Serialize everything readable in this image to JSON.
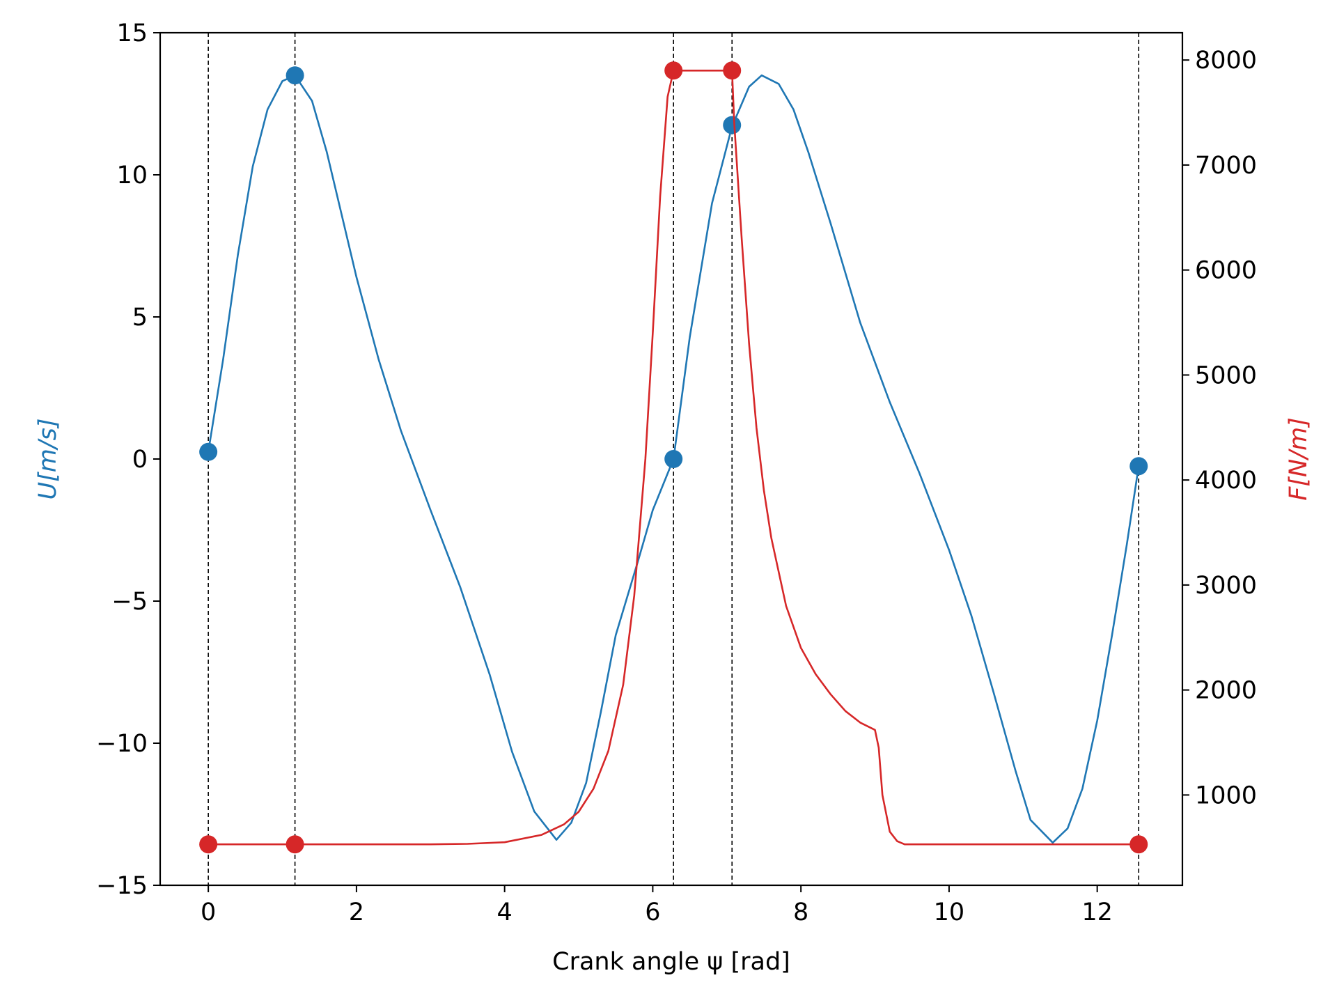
{
  "chart_data": {
    "type": "line",
    "xlabel": "Crank angle ψ [rad]",
    "ylabel_left": "U[m/s]",
    "ylabel_right": "F[N/m]",
    "xlim": [
      -0.65,
      13.15
    ],
    "ylim_left": [
      -15,
      15
    ],
    "ylim_right": [
      140,
      8260
    ],
    "x_ticks": [
      0,
      2,
      4,
      6,
      8,
      10,
      12
    ],
    "x_tick_labels": [
      "0",
      "2",
      "4",
      "6",
      "8",
      "10",
      "12"
    ],
    "y_left_ticks": [
      -15,
      -10,
      -5,
      0,
      5,
      10,
      15
    ],
    "y_left_tick_labels": [
      "−15",
      "−10",
      "−5",
      "0",
      "5",
      "10",
      "15"
    ],
    "y_right_ticks": [
      1000,
      2000,
      3000,
      4000,
      5000,
      6000,
      7000,
      8000
    ],
    "y_right_tick_labels": [
      "1000",
      "2000",
      "3000",
      "4000",
      "5000",
      "6000",
      "7000",
      "8000"
    ],
    "grid": false,
    "vertical_lines": [
      0.0,
      1.17,
      6.28,
      7.07,
      12.56
    ],
    "series": [
      {
        "axis": "left",
        "color": "#1f77b4",
        "x": [
          0.0,
          0.2,
          0.4,
          0.6,
          0.8,
          1.0,
          1.17,
          1.4,
          1.6,
          1.8,
          2.0,
          2.3,
          2.6,
          3.0,
          3.4,
          3.8,
          4.1,
          4.4,
          4.7,
          4.9,
          5.1,
          5.3,
          5.5,
          5.8,
          6.0,
          6.28,
          6.5,
          6.8,
          7.07,
          7.3,
          7.47,
          7.7,
          7.9,
          8.1,
          8.4,
          8.8,
          9.2,
          9.6,
          10.0,
          10.3,
          10.6,
          10.9,
          11.1,
          11.4,
          11.6,
          11.8,
          12.0,
          12.2,
          12.4,
          12.56
        ],
        "y": [
          0.25,
          3.5,
          7.2,
          10.3,
          12.3,
          13.3,
          13.5,
          12.6,
          10.8,
          8.6,
          6.4,
          3.5,
          1.0,
          -1.8,
          -4.5,
          -7.6,
          -10.3,
          -12.4,
          -13.4,
          -12.8,
          -11.4,
          -8.9,
          -6.2,
          -3.6,
          -1.8,
          0.0,
          4.3,
          9.0,
          11.7,
          13.1,
          13.5,
          13.2,
          12.3,
          10.8,
          8.3,
          4.8,
          2.0,
          -0.5,
          -3.2,
          -5.5,
          -8.2,
          -11.0,
          -12.7,
          -13.5,
          -13.0,
          -11.6,
          -9.2,
          -6.2,
          -3.0,
          -0.25
        ],
        "markers": [
          {
            "x": 0.0,
            "y": 0.25
          },
          {
            "x": 1.17,
            "y": 13.5
          },
          {
            "x": 6.28,
            "y": 0.0
          },
          {
            "x": 7.07,
            "y": 11.75
          },
          {
            "x": 12.56,
            "y": -0.25
          }
        ]
      },
      {
        "axis": "right",
        "color": "#d62728",
        "x": [
          0.0,
          1.17,
          3.0,
          3.5,
          4.0,
          4.5,
          4.8,
          5.0,
          5.2,
          5.4,
          5.6,
          5.75,
          5.9,
          6.0,
          6.1,
          6.2,
          6.28,
          7.07,
          7.1,
          7.2,
          7.3,
          7.4,
          7.5,
          7.6,
          7.8,
          8.0,
          8.2,
          8.4,
          8.6,
          8.8,
          9.0,
          9.05,
          9.1,
          9.2,
          9.3,
          9.4,
          12.56
        ],
        "y": [
          530,
          530,
          530,
          535,
          550,
          620,
          720,
          840,
          1060,
          1420,
          2050,
          2900,
          4200,
          5400,
          6700,
          7650,
          7900,
          7900,
          7400,
          6300,
          5300,
          4500,
          3900,
          3450,
          2800,
          2400,
          2150,
          1960,
          1800,
          1690,
          1620,
          1450,
          1000,
          650,
          560,
          530,
          530
        ],
        "markers": [
          {
            "x": 0.0,
            "y": 530
          },
          {
            "x": 1.17,
            "y": 530
          },
          {
            "x": 6.28,
            "y": 7900
          },
          {
            "x": 7.07,
            "y": 7900
          },
          {
            "x": 12.56,
            "y": 530
          }
        ]
      }
    ]
  }
}
